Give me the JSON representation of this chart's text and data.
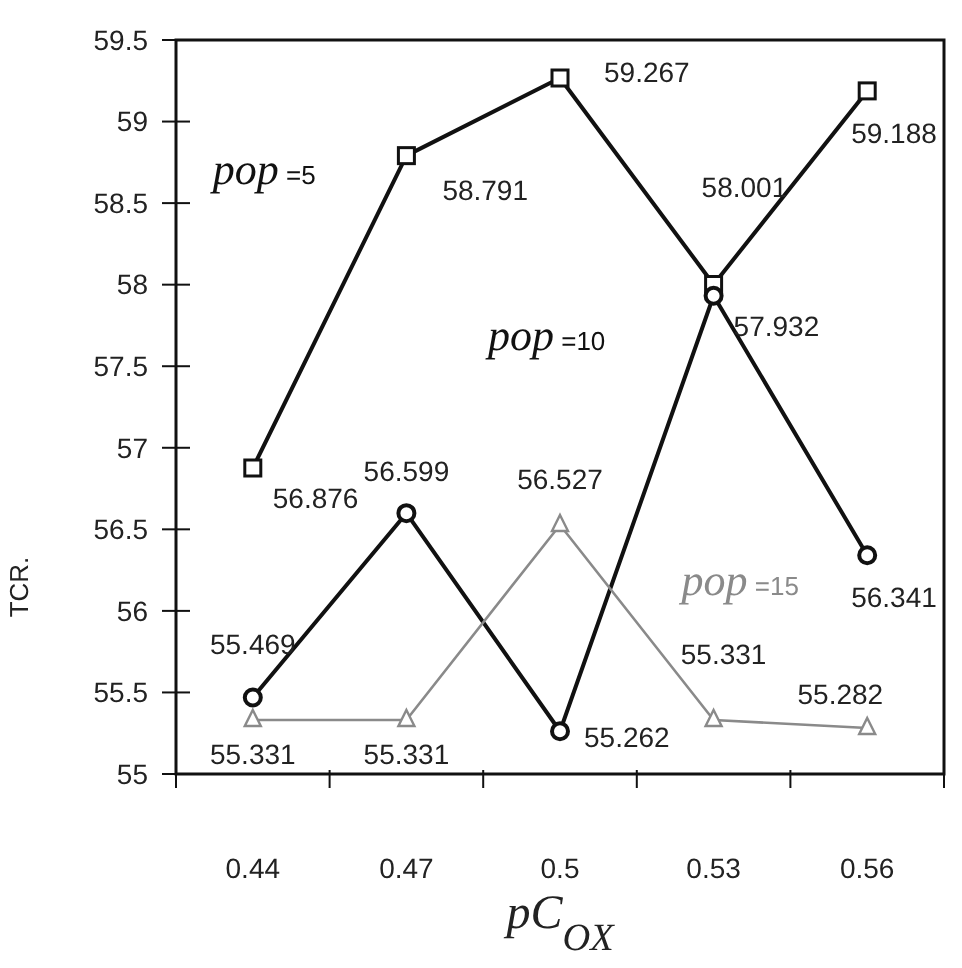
{
  "chart_data": {
    "type": "line",
    "xlabel": "pC$_{OX}$",
    "ylabel": "TCR.",
    "categories": [
      "0.44",
      "0.47",
      "0.5",
      "0.53",
      "0.56"
    ],
    "series": [
      {
        "name": "pop =5",
        "color": "#111111",
        "marker": "square",
        "values": [
          56.876,
          58.791,
          59.267,
          58.001,
          59.188
        ]
      },
      {
        "name": "pop =10",
        "color": "#111111",
        "marker": "circle",
        "values": [
          55.469,
          56.599,
          55.262,
          57.932,
          56.341
        ]
      },
      {
        "name": "pop =15",
        "color": "#8a8a8a",
        "marker": "triangle",
        "values": [
          55.331,
          55.331,
          56.527,
          55.331,
          55.282
        ]
      }
    ],
    "ylim": [
      55,
      59.5
    ],
    "yticks": [
      55,
      55.5,
      56,
      56.5,
      57,
      57.5,
      58,
      58.5,
      59,
      59.5
    ],
    "data_labels": true,
    "grid": false
  }
}
